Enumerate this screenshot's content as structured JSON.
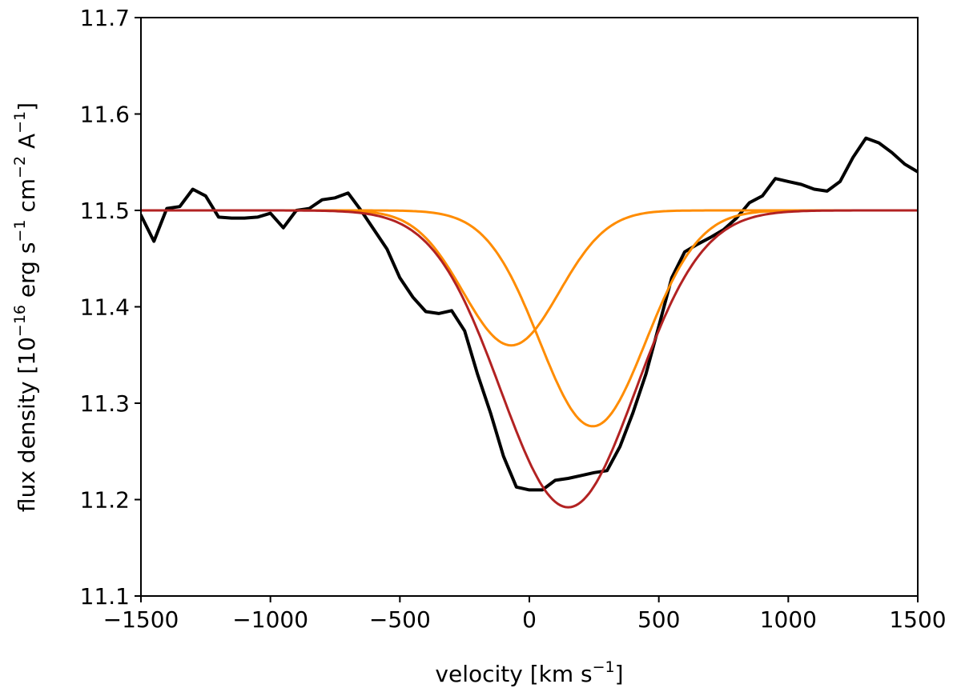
{
  "chart_data": {
    "type": "line",
    "xlabel": {
      "base": "velocity [km s",
      "exp": "−1",
      "end": "]"
    },
    "ylabel": {
      "parts": [
        {
          "t": "flux density [10",
          "sup": false
        },
        {
          "t": "−16",
          "sup": true
        },
        {
          "t": " erg s",
          "sup": false
        },
        {
          "t": "−1",
          "sup": true
        },
        {
          "t": " cm",
          "sup": false
        },
        {
          "t": "−2",
          "sup": true
        },
        {
          "t": " A",
          "sup": false
        },
        {
          "t": "−1",
          "sup": true
        },
        {
          "t": "]",
          "sup": false
        }
      ]
    },
    "xlim": [
      -1500,
      1500
    ],
    "ylim": [
      11.1,
      11.7
    ],
    "xticks": [
      -1500,
      -1000,
      -500,
      0,
      500,
      1000,
      1500
    ],
    "xtick_labels": [
      "−1500",
      "−1000",
      "−500",
      "0",
      "500",
      "1000",
      "1500"
    ],
    "yticks": [
      11.1,
      11.2,
      11.3,
      11.4,
      11.5,
      11.6,
      11.7
    ],
    "ytick_labels": [
      "11.1",
      "11.2",
      "11.3",
      "11.4",
      "11.5",
      "11.6",
      "11.7"
    ],
    "grid": false,
    "legend": "none",
    "series": [
      {
        "kind": "data",
        "color": "#000000",
        "x": [
          -1500,
          -1450,
          -1400,
          -1350,
          -1300,
          -1250,
          -1200,
          -1150,
          -1100,
          -1050,
          -1000,
          -950,
          -900,
          -850,
          -800,
          -750,
          -700,
          -650,
          -600,
          -550,
          -500,
          -450,
          -400,
          -350,
          -300,
          -250,
          -200,
          -150,
          -100,
          -50,
          0,
          50,
          100,
          150,
          200,
          250,
          300,
          350,
          400,
          450,
          500,
          550,
          600,
          650,
          700,
          750,
          800,
          850,
          900,
          950,
          1000,
          1050,
          1100,
          1150,
          1200,
          1250,
          1300,
          1350,
          1400,
          1450,
          1500
        ],
        "y": [
          11.495,
          11.468,
          11.502,
          11.504,
          11.522,
          11.515,
          11.493,
          11.492,
          11.492,
          11.493,
          11.497,
          11.482,
          11.5,
          11.502,
          11.511,
          11.513,
          11.518,
          11.5,
          11.48,
          11.46,
          11.43,
          11.41,
          11.395,
          11.393,
          11.396,
          11.375,
          11.33,
          11.29,
          11.245,
          11.213,
          11.21,
          11.21,
          11.22,
          11.222,
          11.225,
          11.228,
          11.23,
          11.255,
          11.29,
          11.33,
          11.38,
          11.43,
          11.457,
          11.465,
          11.472,
          11.48,
          11.492,
          11.508,
          11.515,
          11.533,
          11.53,
          11.527,
          11.522,
          11.52,
          11.53,
          11.555,
          11.575,
          11.57,
          11.56,
          11.548,
          11.54
        ]
      },
      {
        "kind": "gaussian",
        "color": "#ff8c00",
        "baseline": 11.5,
        "amplitude": -0.14,
        "center": -70,
        "sigma": 185
      },
      {
        "kind": "gaussian",
        "color": "#ff8c00",
        "baseline": 11.5,
        "amplitude": -0.224,
        "center": 245,
        "sigma": 205
      },
      {
        "kind": "gaussian",
        "color": "#b22222",
        "baseline": 11.5,
        "amplitude": -0.308,
        "center": 150,
        "sigma": 260
      }
    ]
  }
}
